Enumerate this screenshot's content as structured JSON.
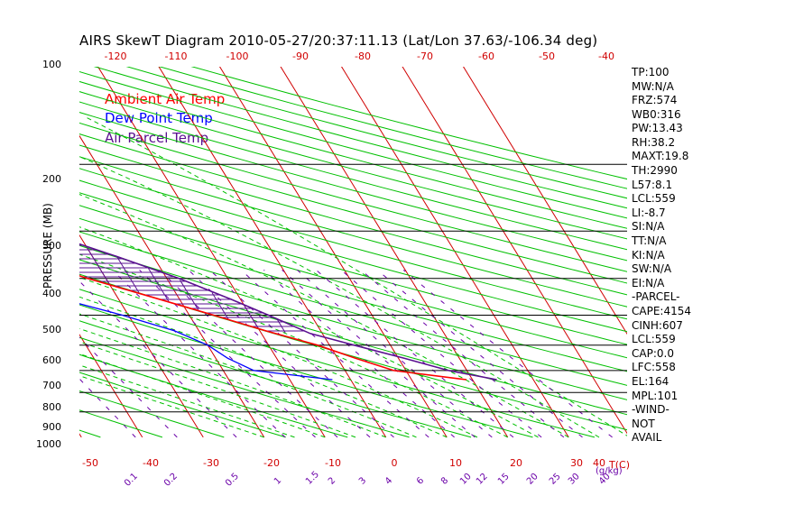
{
  "title": "AIRS SkewT Diagram 2010-05-27/20:37:11.13 (Lat/Lon 37.63/-106.34 deg)",
  "legend": [
    {
      "label": "Ambient Air Temp",
      "color": "#ff0000"
    },
    {
      "label": "Dew Point Temp",
      "color": "#0000ff"
    },
    {
      "label": "Air Parcel Temp",
      "color": "#5a1090"
    }
  ],
  "colors": {
    "isotherm": "#d00000",
    "dry_adiabat": "#00c000",
    "moist_adiabat": "#00c000",
    "mixing_ratio": "#6a00a8",
    "pressure_line": "#000000",
    "cape_hatch": "#5a1090"
  },
  "chart_data": {
    "type": "skewt",
    "ylabel": "PRESSURE (MB)",
    "pressure_ticks": [
      "100",
      "200",
      "300",
      "400",
      "500",
      "600",
      "700",
      "800",
      "900",
      "1000"
    ],
    "pressure_lines": [
      200,
      300,
      400,
      500,
      600,
      700,
      800,
      900
    ],
    "top_temp_ticks": [
      "-120",
      "-110",
      "-100",
      "-90",
      "-80",
      "-70",
      "-60",
      "-50",
      "-40"
    ],
    "bottom_temp_ticks": [
      "-50",
      "-40",
      "-30",
      "-20",
      "-10",
      "0",
      "10",
      "20",
      "30",
      "40"
    ],
    "bottom_temp_unit": "T(C)",
    "mixing_ratio_ticks": [
      "0.1",
      "0.2",
      "0.5",
      "1",
      "1.5",
      "2",
      "3",
      "4",
      "6",
      "8",
      "10",
      "12",
      "15",
      "20",
      "25",
      "30",
      "40"
    ],
    "mixing_ratio_unit": "(g/kg)",
    "plimits": [
      100,
      1050
    ],
    "isotherm_range": [
      -150,
      50
    ],
    "temperature": [
      {
        "p": 100,
        "t": -59
      },
      {
        "p": 115,
        "t": -64
      },
      {
        "p": 130,
        "t": -67
      },
      {
        "p": 150,
        "t": -71
      },
      {
        "p": 175,
        "t": -74
      },
      {
        "p": 200,
        "t": -73
      },
      {
        "p": 230,
        "t": -68
      },
      {
        "p": 250,
        "t": -67
      },
      {
        "p": 270,
        "t": -61
      },
      {
        "p": 300,
        "t": -52
      },
      {
        "p": 350,
        "t": -42
      },
      {
        "p": 400,
        "t": -33
      },
      {
        "p": 450,
        "t": -24
      },
      {
        "p": 500,
        "t": -16
      },
      {
        "p": 550,
        "t": -9
      },
      {
        "p": 600,
        "t": -2
      },
      {
        "p": 650,
        "t": 3
      },
      {
        "p": 700,
        "t": 8
      },
      {
        "p": 740,
        "t": 19
      }
    ],
    "dewpoint": [
      {
        "p": 100,
        "t": -85
      },
      {
        "p": 120,
        "t": -91
      },
      {
        "p": 150,
        "t": -96
      },
      {
        "p": 175,
        "t": -100
      },
      {
        "p": 200,
        "t": -103
      },
      {
        "p": 250,
        "t": -96
      },
      {
        "p": 275,
        "t": -93
      },
      {
        "p": 300,
        "t": -86
      },
      {
        "p": 350,
        "t": -70
      },
      {
        "p": 400,
        "t": -53
      },
      {
        "p": 450,
        "t": -40
      },
      {
        "p": 500,
        "t": -31
      },
      {
        "p": 550,
        "t": -24
      },
      {
        "p": 600,
        "t": -20
      },
      {
        "p": 650,
        "t": -18
      },
      {
        "p": 700,
        "t": -15
      },
      {
        "p": 740,
        "t": -3
      }
    ],
    "parcel": [
      {
        "p": 100,
        "t": -71
      },
      {
        "p": 130,
        "t": -74
      },
      {
        "p": 164,
        "t": -71
      },
      {
        "p": 200,
        "t": -62
      },
      {
        "p": 250,
        "t": -49
      },
      {
        "p": 300,
        "t": -36
      },
      {
        "p": 350,
        "t": -26
      },
      {
        "p": 400,
        "t": -18
      },
      {
        "p": 450,
        "t": -12
      },
      {
        "p": 500,
        "t": -7
      },
      {
        "p": 559,
        "t": -2
      },
      {
        "p": 600,
        "t": 4
      },
      {
        "p": 650,
        "t": 11
      },
      {
        "p": 700,
        "t": 17
      },
      {
        "p": 740,
        "t": 24
      }
    ],
    "cape_region": [
      164,
      559
    ]
  },
  "indices": [
    "TP:100",
    "MW:N/A",
    "FRZ:574",
    "WB0:316",
    "PW:13.43",
    "RH:38.2",
    "MAXT:19.8",
    "TH:2990",
    "L57:8.1",
    "LCL:559",
    "LI:-8.7",
    "SI:N/A",
    "TT:N/A",
    "KI:N/A",
    "SW:N/A",
    "EI:N/A",
    "-PARCEL-",
    "CAPE:4154",
    "CINH:607",
    "LCL:559",
    "CAP:0.0",
    "LFC:558",
    "EL:164",
    "MPL:101",
    "-WIND-",
    "NOT",
    "AVAIL"
  ]
}
